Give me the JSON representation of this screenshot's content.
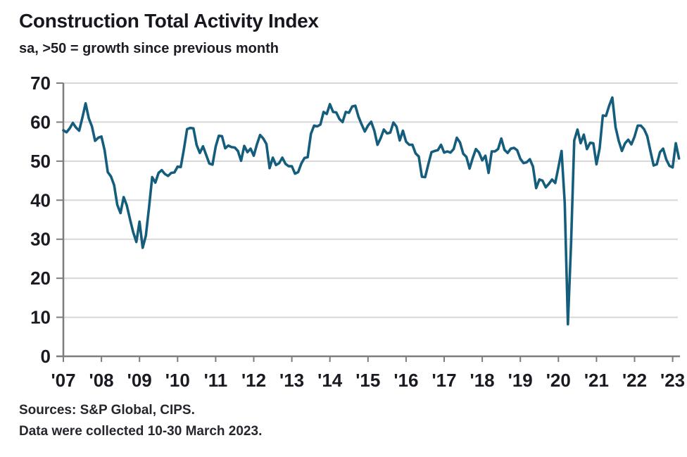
{
  "header": {
    "title": "Construction Total Activity Index",
    "subtitle": "sa, >50 = growth since previous month"
  },
  "footer": {
    "sources": "Sources: S&P Global, CIPS.",
    "collection_note": "Data were collected 10-30 March 2023."
  },
  "colors": {
    "line": "#155D7C",
    "grid": "#D8D8D8",
    "axis": "#7D7D7D",
    "label_text": "#1A1A22"
  },
  "chart_data": {
    "type": "line",
    "title": "Construction Total Activity Index",
    "subtitle": "sa, >50 = growth since previous month",
    "frequency": "monthly",
    "x_start": "2007-01",
    "x_end": "2023-03",
    "ylim": [
      0,
      70
    ],
    "yticks": [
      0,
      10,
      20,
      30,
      40,
      50,
      60,
      70
    ],
    "xtick_labels": [
      "'07",
      "'08",
      "'09",
      "'10",
      "'11",
      "'12",
      "'13",
      "'14",
      "'15",
      "'16",
      "'17",
      "'18",
      "'19",
      "'20",
      "'21",
      "'22",
      "'23"
    ],
    "grid": "horizontal",
    "legend": "none",
    "line_color": "#155D7C",
    "series": [
      {
        "name": "Construction Total Activity Index",
        "values": [
          57.9,
          57.4,
          58.4,
          59.8,
          58.6,
          57.8,
          61.2,
          64.8,
          61.0,
          58.9,
          55.2,
          56.0,
          56.3,
          52.8,
          47.2,
          46.1,
          43.9,
          38.8,
          36.7,
          40.8,
          38.6,
          35.1,
          31.8,
          29.3,
          34.5,
          27.8,
          30.9,
          38.1,
          45.9,
          44.5,
          47.0,
          47.7,
          46.7,
          46.2,
          47.0,
          47.1,
          48.6,
          48.5,
          53.1,
          58.2,
          58.5,
          58.4,
          54.1,
          52.1,
          53.8,
          51.6,
          49.4,
          49.1,
          53.7,
          56.5,
          56.4,
          53.3,
          54.0,
          53.6,
          53.5,
          52.6,
          50.1,
          53.9,
          52.3,
          53.2,
          51.4,
          54.3,
          56.7,
          55.8,
          54.4,
          48.2,
          50.9,
          49.0,
          49.5,
          50.9,
          49.3,
          48.7,
          48.7,
          46.8,
          47.2,
          49.4,
          50.8,
          51.0,
          57.0,
          59.1,
          58.9,
          59.4,
          62.6,
          62.1,
          64.6,
          62.6,
          62.5,
          60.8,
          60.0,
          62.6,
          62.4,
          64.0,
          64.2,
          61.4,
          59.4,
          57.6,
          59.1,
          60.1,
          57.8,
          54.2,
          55.9,
          58.1,
          57.1,
          57.3,
          59.9,
          58.8,
          55.3,
          57.8,
          55.0,
          54.2,
          54.2,
          52.0,
          51.2,
          46.0,
          45.9,
          49.2,
          52.3,
          52.6,
          52.8,
          54.2,
          52.2,
          52.5,
          52.2,
          53.1,
          56.0,
          54.8,
          51.9,
          51.1,
          48.1,
          50.8,
          53.1,
          52.2,
          50.2,
          51.4,
          47.0,
          52.5,
          52.5,
          53.1,
          55.8,
          52.9,
          52.1,
          53.2,
          53.4,
          52.8,
          50.6,
          49.5,
          49.7,
          50.5,
          48.6,
          43.1,
          45.3,
          45.0,
          43.3,
          44.2,
          45.3,
          44.4,
          48.4,
          52.6,
          39.3,
          8.2,
          28.9,
          55.3,
          58.1,
          54.6,
          56.8,
          53.1,
          54.7,
          54.6,
          49.2,
          53.3,
          61.7,
          61.6,
          64.2,
          66.3,
          58.7,
          55.2,
          52.6,
          54.6,
          55.5,
          54.3,
          56.3,
          59.1,
          59.1,
          58.2,
          56.4,
          52.6,
          48.9,
          49.2,
          52.3,
          53.2,
          50.4,
          48.8,
          48.4,
          54.6,
          50.7
        ]
      }
    ]
  }
}
